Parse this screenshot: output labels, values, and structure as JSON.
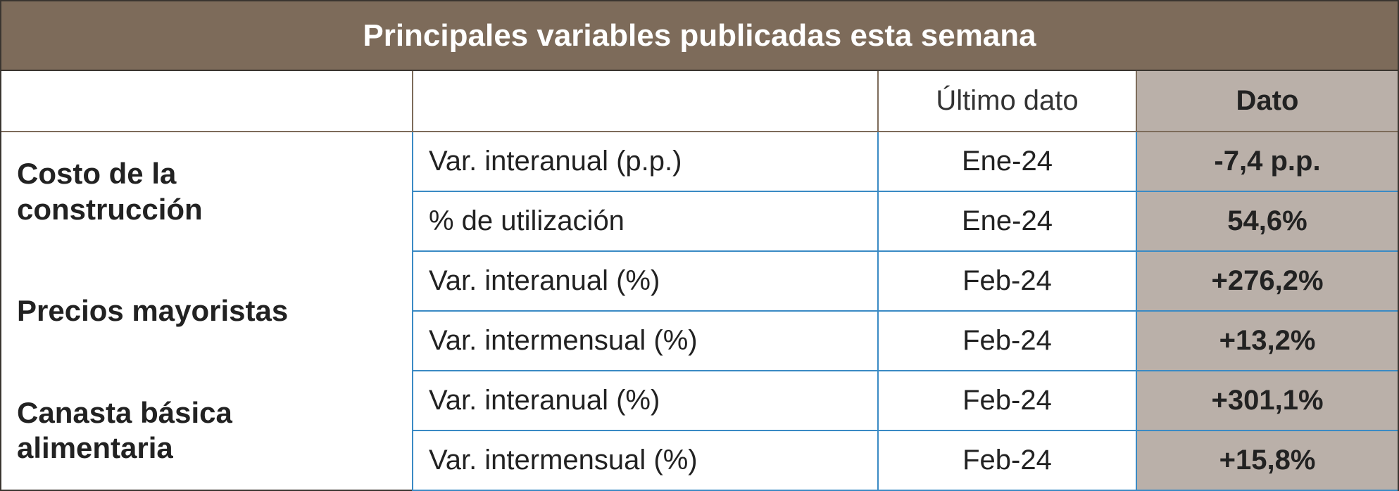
{
  "title": "Principales variables publicadas esta semana",
  "table": {
    "header": {
      "date": "Último dato",
      "value": "Dato"
    },
    "groups": [
      {
        "label": "Costo de la construcción",
        "rows": [
          {
            "indicator": "Var. interanual (p.p.)",
            "date": "Ene-24",
            "value": "-7,4 p.p."
          },
          {
            "indicator": "% de utilización",
            "date": "Ene-24",
            "value": "54,6%"
          }
        ]
      },
      {
        "label": "Precios mayoristas",
        "rows": [
          {
            "indicator": "Var. interanual (%)",
            "date": "Feb-24",
            "value": "+276,2%"
          },
          {
            "indicator": "Var. intermensual (%)",
            "date": "Feb-24",
            "value": "+13,2%"
          }
        ]
      },
      {
        "label": "Canasta básica alimentaria",
        "rows": [
          {
            "indicator": "Var. interanual (%)",
            "date": "Feb-24",
            "value": "+301,1%"
          },
          {
            "indicator": "Var. intermensual (%)",
            "date": "Feb-24",
            "value": "+15,8%"
          }
        ]
      }
    ]
  }
}
